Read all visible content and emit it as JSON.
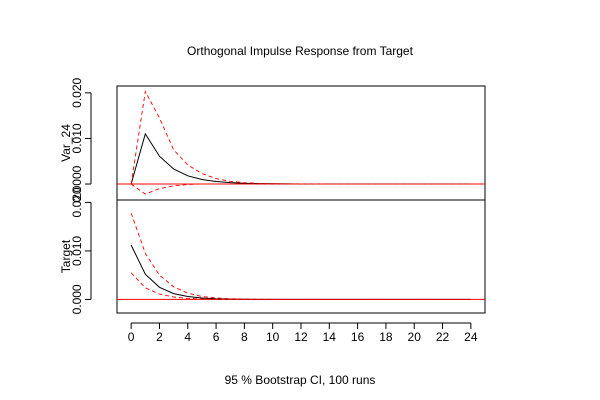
{
  "chart_data": {
    "type": "line",
    "title": "Orthogonal Impulse Response from Target",
    "xlabel": "95 % Bootstrap CI,  100 runs",
    "x": [
      0,
      1,
      2,
      3,
      4,
      5,
      6,
      7,
      8,
      9,
      10,
      11,
      12,
      13,
      14,
      15,
      16,
      17,
      18,
      19,
      20,
      21,
      22,
      23,
      24
    ],
    "x_ticks": [
      "0",
      "2",
      "4",
      "6",
      "8",
      "10",
      "12",
      "14",
      "16",
      "18",
      "20",
      "22",
      "24"
    ],
    "xlim": [
      -1,
      25
    ],
    "colors": {
      "response": "#000000",
      "ci": "#ff0000",
      "zero_line": "#ff0000"
    },
    "panels": [
      {
        "ylabel": "Var_24",
        "ylim": [
          -0.0035,
          0.0215
        ],
        "y_ticks": [
          "0.0000",
          "0.010",
          "0.020"
        ],
        "series": [
          {
            "role": "response",
            "values": [
              0,
              0.011,
              0.0061,
              0.0033,
              0.0018,
              0.001,
              0.00055,
              0.0003,
              0.00016,
              9e-05,
              5e-05,
              3e-05,
              1e-05,
              0,
              0,
              0,
              0,
              0,
              0,
              0,
              0,
              0,
              0,
              0,
              0
            ]
          },
          {
            "role": "ci_upper",
            "values": [
              0,
              0.0203,
              0.0145,
              0.0075,
              0.0042,
              0.0023,
              0.0012,
              0.0006,
              0.0003,
              0.00015,
              8e-05,
              4e-05,
              2e-05,
              1e-05,
              0,
              0,
              0,
              0,
              0,
              0,
              0,
              0,
              0,
              0,
              0
            ]
          },
          {
            "role": "ci_lower",
            "values": [
              0,
              -0.0022,
              -0.001,
              -0.0004,
              -0.0001,
              0,
              0,
              0,
              0,
              0,
              0,
              0,
              0,
              0,
              0,
              0,
              0,
              0,
              0,
              0,
              0,
              0,
              0,
              0,
              0
            ]
          }
        ]
      },
      {
        "ylabel": "Target",
        "ylim": [
          -0.0028,
          0.0205
        ],
        "y_ticks": [
          "0.000",
          "0.010",
          "0.020"
        ],
        "series": [
          {
            "role": "response",
            "values": [
              0.0112,
              0.0052,
              0.0025,
              0.0012,
              0.0006,
              0.0003,
              0.00014,
              7e-05,
              3e-05,
              1e-05,
              0,
              0,
              0,
              0,
              0,
              0,
              0,
              0,
              0,
              0,
              0,
              0,
              0,
              0,
              0
            ]
          },
          {
            "role": "ci_upper",
            "values": [
              0.0178,
              0.0095,
              0.005,
              0.0026,
              0.0013,
              0.0006,
              0.0003,
              0.00014,
              7e-05,
              3e-05,
              1e-05,
              0,
              0,
              0,
              0,
              0,
              0,
              0,
              0,
              0,
              0,
              0,
              0,
              0,
              0
            ]
          },
          {
            "role": "ci_lower",
            "values": [
              0.0055,
              0.0024,
              0.0011,
              0.0005,
              0.0002,
              0.0001,
              5e-05,
              2e-05,
              1e-05,
              0,
              0,
              0,
              0,
              0,
              0,
              0,
              0,
              0,
              0,
              0,
              0,
              0,
              0,
              0,
              0
            ]
          }
        ]
      }
    ]
  }
}
